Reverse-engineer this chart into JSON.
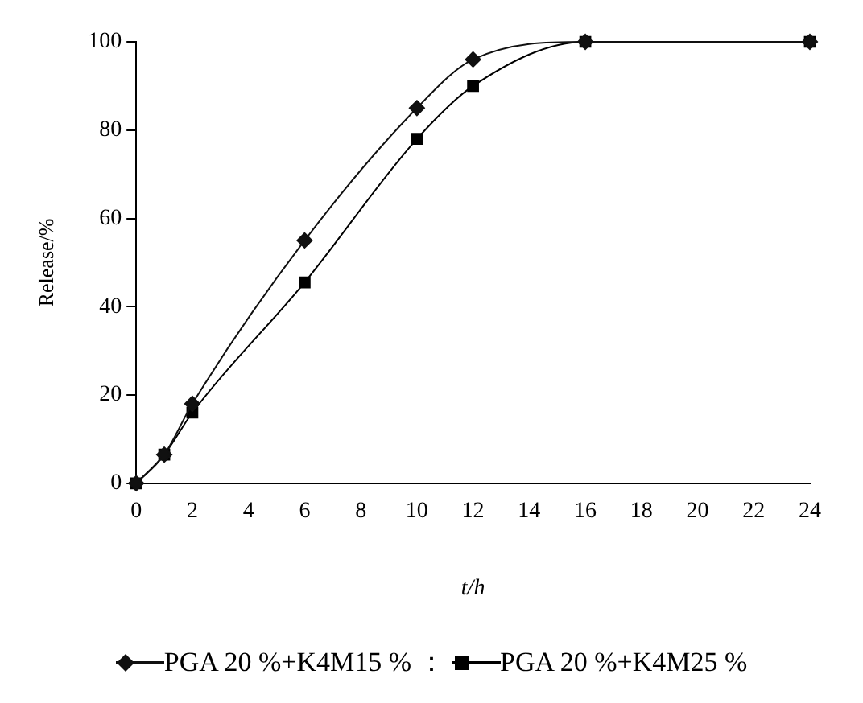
{
  "chart_data": {
    "type": "line",
    "xlabel": "t/h",
    "ylabel": "Release/%",
    "x": [
      0,
      1,
      2,
      6,
      10,
      12,
      16,
      24
    ],
    "series": [
      {
        "name": "PGA 20 %+K4M15 %",
        "color": "#101010",
        "marker": "diamond",
        "values": [
          0,
          6.5,
          18,
          55,
          85,
          96,
          100,
          100
        ]
      },
      {
        "name": "PGA 20 %+K4M25 %",
        "color": "#000000",
        "marker": "square",
        "values": [
          0,
          6.5,
          16,
          45.5,
          78,
          90,
          100,
          100
        ]
      }
    ],
    "xlim": [
      0,
      24
    ],
    "xticks": [
      0,
      2,
      4,
      6,
      8,
      10,
      12,
      14,
      16,
      18,
      20,
      22,
      24
    ],
    "ylim": [
      0,
      100
    ],
    "yticks": [
      0,
      20,
      40,
      60,
      80,
      100
    ],
    "grid": false,
    "legend": "bottom",
    "annotations": [
      "："
    ]
  }
}
